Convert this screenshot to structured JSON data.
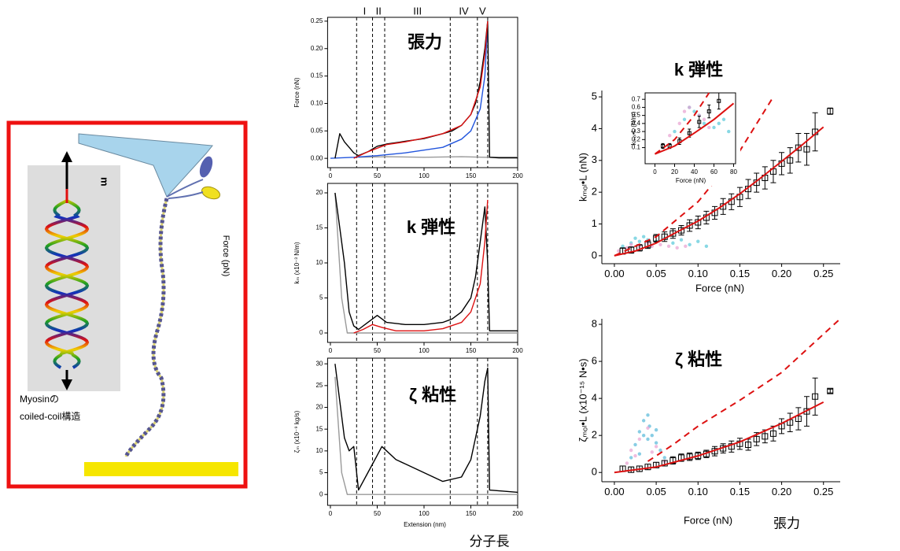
{
  "diagram": {
    "label_lines": [
      "Myosinの",
      "coiled-coil構造"
    ],
    "force_label": "Force (pN)"
  },
  "chart_data": [
    {
      "type": "line",
      "title": "張力",
      "ylabel": "Force (nN)",
      "xlim": [
        -3,
        200
      ],
      "xticks": [
        0,
        50,
        100,
        150,
        200
      ],
      "ylim": [
        -0.017,
        0.257
      ],
      "yticks": [
        {
          "value": 0,
          "label": "0.00"
        },
        {
          "value": 0.05,
          "label": "0.05"
        },
        {
          "value": 0.1,
          "label": "0.10"
        },
        {
          "value": 0.15,
          "label": "0.15"
        },
        {
          "value": 0.2,
          "label": "0.20"
        },
        {
          "value": 0.25,
          "label": "0.25"
        }
      ],
      "regions": [
        "I",
        "II",
        "III",
        "IV",
        "V"
      ],
      "region_bounds": [
        28,
        45,
        58,
        128,
        157,
        168
      ],
      "series": [
        {
          "color": "#999999",
          "x": [
            30,
            60,
            100,
            140,
            165,
            200
          ],
          "values": [
            0.002,
            0.003,
            0.002,
            0.003,
            0.002,
            0.002
          ]
        },
        {
          "color": "#2255dd",
          "x": [
            0,
            25,
            50,
            80,
            100,
            120,
            140,
            150,
            160,
            165,
            168
          ],
          "values": [
            0,
            0.002,
            0.005,
            0.01,
            0.015,
            0.02,
            0.035,
            0.05,
            0.09,
            0.15,
            0.25
          ]
        },
        {
          "color": "#000000",
          "x": [
            5,
            10,
            15,
            20,
            25,
            30,
            40,
            50,
            60,
            80,
            100,
            120,
            130,
            140,
            150,
            155,
            160,
            165,
            168,
            170,
            180,
            200
          ],
          "values": [
            0,
            0.045,
            0.03,
            0.02,
            0.01,
            0.005,
            0.012,
            0.022,
            0.026,
            0.031,
            0.036,
            0.045,
            0.05,
            0.06,
            0.08,
            0.1,
            0.14,
            0.2,
            0.25,
            0.002,
            0.001,
            0.001
          ]
        },
        {
          "color": "#dd1111",
          "x": [
            25,
            40,
            60,
            80,
            100,
            120,
            140,
            150,
            160,
            165,
            168
          ],
          "values": [
            0,
            0.012,
            0.025,
            0.03,
            0.037,
            0.045,
            0.06,
            0.08,
            0.13,
            0.19,
            0.25
          ]
        }
      ]
    },
    {
      "type": "line",
      "title": "k  弾性",
      "ylabel": "kₘ (x10⁻³ N/m)",
      "xlim": [
        -3,
        200
      ],
      "xticks": [
        0,
        50,
        100,
        150,
        200
      ],
      "ylim": [
        -1.35,
        21.35
      ],
      "yticks": [
        0,
        5,
        10,
        15,
        20
      ],
      "series": [
        {
          "color": "#999999",
          "x": [
            5,
            12,
            18,
            25,
            60,
            100,
            150,
            200
          ],
          "values": [
            20,
            5,
            0,
            0,
            0,
            0,
            0,
            0
          ]
        },
        {
          "color": "#000000",
          "x": [
            5,
            10,
            15,
            20,
            25,
            30,
            40,
            50,
            60,
            80,
            100,
            120,
            130,
            140,
            150,
            155,
            160,
            165,
            168,
            170,
            200
          ],
          "values": [
            20,
            15,
            10,
            3,
            1,
            0.5,
            1.5,
            2.5,
            1.5,
            1.2,
            1.2,
            1.5,
            2,
            3,
            5,
            8,
            13,
            18,
            10,
            0.3,
            0.3
          ]
        },
        {
          "color": "#dd1111",
          "x": [
            25,
            35,
            45,
            55,
            70,
            100,
            120,
            140,
            150,
            160,
            165,
            168
          ],
          "values": [
            0,
            0.5,
            1.2,
            0.8,
            0.3,
            0.3,
            0.6,
            1.5,
            3,
            7,
            13,
            19
          ]
        }
      ]
    },
    {
      "type": "line",
      "title": "ζ  粘性",
      "ylabel": "ζₘ (x10⁻⁹ kg/s)",
      "xlabel": "Extension (nm)",
      "annotation": "分子長",
      "xlim": [
        -3,
        200
      ],
      "xticks": [
        0,
        50,
        100,
        150,
        200
      ],
      "ylim": [
        -2.5,
        31.3
      ],
      "yticks": [
        0,
        5,
        10,
        15,
        20,
        25,
        30
      ],
      "series": [
        {
          "color": "#999999",
          "x": [
            5,
            12,
            18,
            25,
            60,
            100,
            150,
            200
          ],
          "values": [
            27,
            5,
            0,
            0,
            0,
            0,
            0,
            0
          ]
        },
        {
          "color": "#000000",
          "x": [
            5,
            15,
            20,
            25,
            30,
            40,
            50,
            55,
            60,
            70,
            80,
            100,
            120,
            140,
            150,
            160,
            165,
            168,
            170,
            200
          ],
          "values": [
            30,
            13,
            10,
            11,
            1,
            5,
            9,
            11,
            10,
            8,
            7,
            5,
            3,
            4,
            8,
            18,
            26,
            29,
            1,
            0.5
          ]
        }
      ]
    },
    {
      "type": "scatter",
      "title": "k  弾性",
      "ylabel": "kₘₒₗ•L (nN)",
      "xlabel": "Force (nN)",
      "xlim": [
        -0.015,
        0.27
      ],
      "xticks": [
        {
          "value": 0,
          "label": "0.00"
        },
        {
          "value": 0.05,
          "label": "0.05"
        },
        {
          "value": 0.1,
          "label": "0.10"
        },
        {
          "value": 0.15,
          "label": "0.15"
        },
        {
          "value": 0.2,
          "label": "0.20"
        },
        {
          "value": 0.25,
          "label": "0.25"
        }
      ],
      "ylim": [
        -0.25,
        5.2
      ],
      "yticks": [
        0,
        1,
        2,
        3,
        4,
        5
      ],
      "series": [
        {
          "color": "#55c8d8",
          "marker": "dot",
          "x": [
            0.01,
            0.02,
            0.025,
            0.03,
            0.035,
            0.04,
            0.05,
            0.06,
            0.07,
            0.08,
            0.09,
            0.1,
            0.11
          ],
          "values": [
            0.3,
            0.4,
            0.55,
            0.45,
            0.6,
            0.5,
            0.45,
            0.55,
            0.4,
            0.5,
            0.35,
            0.45,
            0.3
          ]
        },
        {
          "color": "#e8a0d0",
          "marker": "dot",
          "x": [
            0.005,
            0.015,
            0.02,
            0.03,
            0.04,
            0.045,
            0.055,
            0.065,
            0.075,
            0.085
          ],
          "values": [
            0.15,
            0.25,
            0.35,
            0.3,
            0.4,
            0.3,
            0.35,
            0.3,
            0.25,
            0.3
          ]
        },
        {
          "color": "#000000",
          "marker": "errorbar",
          "x": [
            0.01,
            0.02,
            0.03,
            0.04,
            0.05,
            0.06,
            0.07,
            0.08,
            0.09,
            0.1,
            0.11,
            0.12,
            0.13,
            0.14,
            0.15,
            0.16,
            0.17,
            0.18,
            0.19,
            0.2,
            0.21,
            0.22,
            0.23,
            0.24,
            0.258
          ],
          "values": [
            0.15,
            0.18,
            0.25,
            0.35,
            0.55,
            0.6,
            0.7,
            0.8,
            0.95,
            1.05,
            1.2,
            1.35,
            1.55,
            1.7,
            1.85,
            2.1,
            2.3,
            2.45,
            2.65,
            2.9,
            3.0,
            3.4,
            3.35,
            3.9,
            4.55
          ],
          "errors": [
            0.1,
            0.1,
            0.1,
            0.12,
            0.12,
            0.15,
            0.15,
            0.15,
            0.18,
            0.2,
            0.2,
            0.2,
            0.25,
            0.25,
            0.3,
            0.3,
            0.3,
            0.35,
            0.35,
            0.35,
            0.4,
            0.45,
            0.5,
            0.6,
            0.1
          ]
        },
        {
          "color": "#dd1111",
          "x": [
            0,
            0.025,
            0.05,
            0.075,
            0.1,
            0.125,
            0.15,
            0.175,
            0.2,
            0.225,
            0.25
          ],
          "values": [
            0,
            0.15,
            0.4,
            0.75,
            1.09,
            1.5,
            1.95,
            2.45,
            2.97,
            3.5,
            4.05
          ]
        },
        {
          "color": "#dd1111",
          "dash": true,
          "x": [
            0,
            0.05,
            0.1,
            0.15,
            0.19
          ],
          "values": [
            0,
            0.6,
            1.7,
            3.3,
            5
          ]
        }
      ]
    },
    {
      "type": "scatter",
      "ylabel": "kₘₒₗ•L (N/m)",
      "xlabel": "Force (nN)",
      "xlim": [
        -10,
        82
      ],
      "xticks": [
        0,
        20,
        40,
        60,
        80
      ],
      "ylim": [
        -0.1,
        0.78
      ],
      "yticks": [
        0.1,
        0.2,
        0.3,
        0.4,
        0.5,
        0.6,
        0.7
      ],
      "series": [
        {
          "color": "#55c8d8",
          "marker": "dot",
          "x": [
            20,
            30,
            40,
            50,
            60,
            70,
            75,
            35,
            45,
            65
          ],
          "values": [
            0.3,
            0.45,
            0.55,
            0.4,
            0.35,
            0.45,
            0.3,
            0.6,
            0.5,
            0.4
          ]
        },
        {
          "color": "#e8a0d0",
          "marker": "dot",
          "x": [
            15,
            25,
            35,
            45,
            55,
            30,
            50
          ],
          "values": [
            0.25,
            0.4,
            0.6,
            0.5,
            0.35,
            0.55,
            0.45
          ]
        },
        {
          "color": "#000000",
          "marker": "errorbar",
          "x": [
            8,
            15,
            25,
            35,
            45,
            55,
            65
          ],
          "values": [
            0.12,
            0.12,
            0.18,
            0.28,
            0.42,
            0.55,
            0.68
          ],
          "errors": [
            0.03,
            0.03,
            0.04,
            0.05,
            0.07,
            0.08,
            0.1
          ]
        },
        {
          "color": "#dd1111",
          "x": [
            0,
            20,
            40,
            60,
            80
          ],
          "values": [
            0.02,
            0.12,
            0.28,
            0.45,
            0.65
          ]
        },
        {
          "color": "#dd1111",
          "dash": true,
          "x": [
            0,
            20,
            40,
            55
          ],
          "values": [
            0.02,
            0.2,
            0.5,
            0.78
          ]
        }
      ]
    },
    {
      "type": "scatter",
      "title": "ζ  粘性",
      "ylabel": "ζₘₒₗ•L (x10⁻¹⁵ N•s)",
      "xlabel": "Force (nN)",
      "annotation": "張力",
      "xlim": [
        -0.015,
        0.27
      ],
      "xticks": [
        {
          "value": 0,
          "label": "0.00"
        },
        {
          "value": 0.05,
          "label": "0.05"
        },
        {
          "value": 0.1,
          "label": "0.10"
        },
        {
          "value": 0.15,
          "label": "0.15"
        },
        {
          "value": 0.2,
          "label": "0.20"
        },
        {
          "value": 0.25,
          "label": "0.25"
        }
      ],
      "ylim": [
        -0.5,
        8.3
      ],
      "yticks": [
        0,
        2,
        4,
        6,
        8
      ],
      "series": [
        {
          "color": "#55b8d8",
          "marker": "dot",
          "x": [
            0.02,
            0.025,
            0.03,
            0.035,
            0.04,
            0.042,
            0.045,
            0.05,
            0.055,
            0.06,
            0.03,
            0.04,
            0.05,
            0.035
          ],
          "values": [
            0.8,
            1.5,
            2.2,
            2.8,
            3.1,
            2.5,
            2.0,
            1.6,
            1.2,
            0.8,
            1.0,
            1.8,
            2.3,
            2.0
          ]
        },
        {
          "color": "#e8a0d0",
          "marker": "dot",
          "x": [
            0.015,
            0.02,
            0.03,
            0.04,
            0.05,
            0.06,
            0.025,
            0.045
          ],
          "values": [
            0.5,
            1.2,
            1.8,
            2.4,
            1.4,
            0.6,
            0.9,
            1.1
          ]
        },
        {
          "color": "#000000",
          "marker": "errorbar",
          "x": [
            0.01,
            0.02,
            0.03,
            0.04,
            0.05,
            0.06,
            0.07,
            0.08,
            0.09,
            0.1,
            0.11,
            0.12,
            0.13,
            0.14,
            0.15,
            0.16,
            0.17,
            0.18,
            0.19,
            0.2,
            0.21,
            0.22,
            0.23,
            0.24,
            0.258
          ],
          "values": [
            0.2,
            0.15,
            0.2,
            0.3,
            0.4,
            0.5,
            0.65,
            0.8,
            0.85,
            0.9,
            1.0,
            1.15,
            1.3,
            1.4,
            1.55,
            1.5,
            1.8,
            1.95,
            2.1,
            2.5,
            2.7,
            2.9,
            3.3,
            4.1,
            4.4
          ],
          "errors": [
            0.15,
            0.15,
            0.15,
            0.15,
            0.15,
            0.15,
            0.2,
            0.2,
            0.2,
            0.2,
            0.2,
            0.25,
            0.25,
            0.3,
            0.3,
            0.3,
            0.35,
            0.35,
            0.4,
            0.4,
            0.5,
            0.6,
            0.8,
            1.0,
            0.1
          ]
        },
        {
          "color": "#dd1111",
          "x": [
            0,
            0.05,
            0.1,
            0.15,
            0.2,
            0.25
          ],
          "values": [
            0,
            0.3,
            0.9,
            1.65,
            2.65,
            3.8
          ]
        },
        {
          "color": "#dd1111",
          "dash": true,
          "x": [
            0.04,
            0.07,
            0.1,
            0.15,
            0.2,
            0.27
          ],
          "values": [
            0.6,
            1.5,
            2.5,
            3.9,
            5.4,
            8.3
          ]
        }
      ]
    }
  ]
}
